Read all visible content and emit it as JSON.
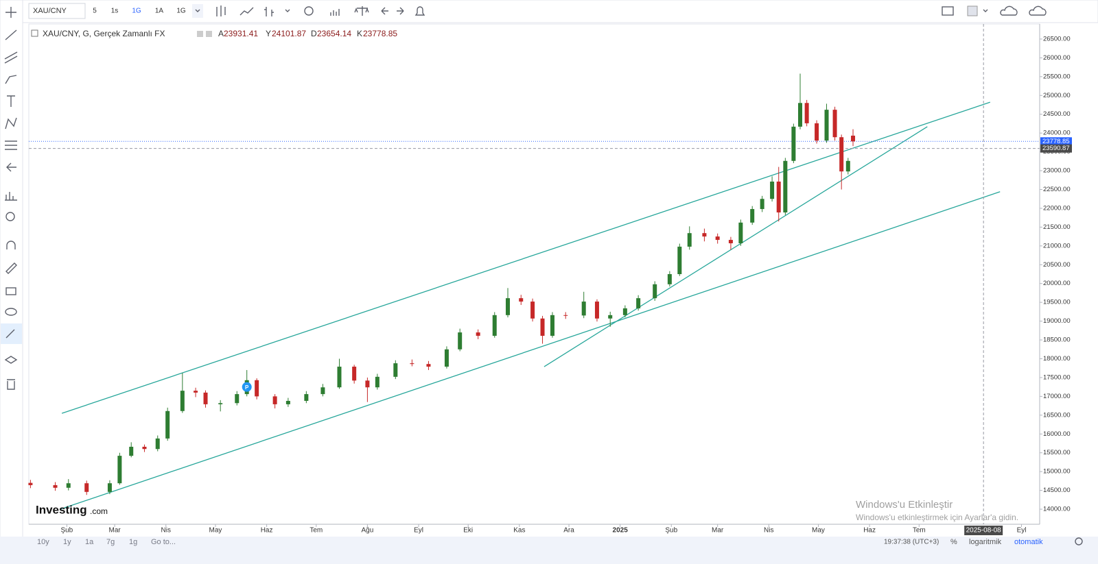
{
  "toolbar": {
    "symbol": "XAU/CNY",
    "intervals": [
      "5",
      "1s",
      "1G",
      "1A",
      "1G"
    ]
  },
  "chart_data": {
    "type": "candlestick",
    "title": "XAU/CNY, G, Gerçek Zamanlı FX",
    "ohlc_letters": [
      "A",
      "Y",
      "D",
      "K"
    ],
    "x": [
      9,
      24,
      32,
      43,
      57,
      63,
      70,
      78,
      86,
      92,
      101,
      109,
      115,
      124,
      134,
      140,
      146,
      157,
      165,
      176,
      186,
      196,
      205,
      213,
      219,
      230,
      240,
      250,
      261,
      269,
      280,
      290,
      298,
      306,
      313,
      319,
      325,
      333,
      344,
      352,
      360,
      369,
      377,
      387,
      396,
      402,
      408,
      417,
      425,
      433,
      439,
      446,
      452,
      458,
      462,
      466,
      471,
      475,
      479,
      485,
      491,
      496,
      500,
      504,
      507
    ],
    "open": [
      14700,
      14640,
      14570,
      14690,
      14460,
      14690,
      15420,
      15660,
      15600,
      15880,
      16610,
      17150,
      17100,
      16790,
      16820,
      17060,
      17430,
      17000,
      16790,
      16880,
      17060,
      17240,
      17790,
      17420,
      17240,
      17520,
      17880,
      17860,
      17790,
      18250,
      18700,
      18610,
      19160,
      19610,
      19520,
      19070,
      18610,
      19160,
      19150,
      19520,
      19070,
      19160,
      19340,
      19610,
      19980,
      20250,
      20980,
      21340,
      21250,
      21160,
      21070,
      21620,
      21980,
      22250,
      22710,
      21890,
      23260,
      24170,
      24800,
      24260,
      23800,
      24620,
      23890,
      22980,
      23931.41
    ],
    "high": [
      14780,
      14720,
      14800,
      14760,
      14770,
      15500,
      15780,
      15720,
      15960,
      16700,
      17620,
      17230,
      17160,
      16900,
      17140,
      17700,
      17480,
      17060,
      16960,
      17140,
      17330,
      18000,
      17840,
      17500,
      17600,
      17960,
      17980,
      17940,
      18330,
      18800,
      18780,
      19240,
      19880,
      19700,
      19600,
      19140,
      19240,
      19240,
      19780,
      19580,
      19250,
      19420,
      19690,
      20060,
      20330,
      21060,
      21520,
      21460,
      21330,
      21240,
      21700,
      22060,
      22330,
      22850,
      23100,
      23340,
      24250,
      25580,
      24880,
      24340,
      24780,
      24700,
      23960,
      23340,
      24101.87
    ],
    "low": [
      14560,
      14490,
      14500,
      14380,
      14400,
      14650,
      15380,
      15520,
      15540,
      15820,
      16560,
      16980,
      16700,
      16600,
      16760,
      17000,
      16920,
      16680,
      16720,
      16820,
      17000,
      17200,
      17340,
      16850,
      17180,
      17460,
      17800,
      17700,
      17740,
      18200,
      18520,
      18560,
      19100,
      19430,
      18990,
      18400,
      18560,
      19060,
      19080,
      18990,
      18850,
      19100,
      19280,
      19540,
      19920,
      20200,
      20900,
      21120,
      21060,
      20900,
      21000,
      21560,
      21900,
      22180,
      21650,
      21820,
      23200,
      24100,
      24180,
      23720,
      23740,
      23800,
      22500,
      22900,
      23654.14
    ],
    "close": [
      14640,
      14570,
      14690,
      14460,
      14690,
      15420,
      15660,
      15600,
      15880,
      16610,
      17150,
      17100,
      16790,
      16820,
      17060,
      17430,
      17000,
      16790,
      16880,
      17060,
      17240,
      17790,
      17420,
      17240,
      17520,
      17880,
      17860,
      17790,
      18250,
      18700,
      18610,
      19160,
      19610,
      19520,
      19070,
      18610,
      19160,
      19150,
      19520,
      19070,
      19160,
      19340,
      19610,
      19980,
      20250,
      20980,
      21340,
      21250,
      21160,
      21070,
      21620,
      21980,
      22250,
      22710,
      21890,
      23260,
      24170,
      24800,
      24260,
      23800,
      24620,
      23890,
      22980,
      23260,
      23778.85
    ],
    "up_color": "#2e7d32",
    "down_color": "#c62828",
    "trendline_color": "#26a69a",
    "trendlines": [
      [
        [
          28,
          16550
        ],
        [
          590,
          24820
        ]
      ],
      [
        [
          27,
          14000
        ],
        [
          596,
          22440
        ]
      ],
      [
        [
          320,
          17790
        ],
        [
          552,
          24170
        ]
      ]
    ],
    "last_price": 23778.85,
    "crosshair": {
      "x": 586,
      "x_label": "2025-08-08",
      "y": 23590.87
    },
    "marker": {
      "x": 140,
      "y": 17250,
      "label": "P"
    },
    "xlim": [
      8,
      620
    ],
    "ylim": [
      13600,
      26900
    ],
    "xticks": [
      {
        "value": 31,
        "label": "Şub"
      },
      {
        "value": 60,
        "label": "Mar"
      },
      {
        "value": 91,
        "label": "Nis"
      },
      {
        "value": 121,
        "label": "May"
      },
      {
        "value": 152,
        "label": "Haz"
      },
      {
        "value": 182,
        "label": "Tem"
      },
      {
        "value": 213,
        "label": "Ağu"
      },
      {
        "value": 244,
        "label": "Eyl"
      },
      {
        "value": 274,
        "label": "Eki"
      },
      {
        "value": 305,
        "label": "Kas"
      },
      {
        "value": 335,
        "label": "Ara"
      },
      {
        "value": 366,
        "label": "2025"
      },
      {
        "value": 397,
        "label": "Şub"
      },
      {
        "value": 425,
        "label": "Mar"
      },
      {
        "value": 456,
        "label": "Nis"
      },
      {
        "value": 486,
        "label": "May"
      },
      {
        "value": 517,
        "label": "Haz"
      },
      {
        "value": 547,
        "label": "Tem"
      },
      {
        "value": 609,
        "label": "Eyl"
      }
    ],
    "yticks": [
      {
        "value": 14000,
        "label": "14000.00"
      },
      {
        "value": 14500,
        "label": "14500.00"
      },
      {
        "value": 15000,
        "label": "15000.00"
      },
      {
        "value": 15500,
        "label": "15500.00"
      },
      {
        "value": 16000,
        "label": "16000.00"
      },
      {
        "value": 16500,
        "label": "16500.00"
      },
      {
        "value": 17000,
        "label": "17000.00"
      },
      {
        "value": 17500,
        "label": "17500.00"
      },
      {
        "value": 18000,
        "label": "18000.00"
      },
      {
        "value": 18500,
        "label": "18500.00"
      },
      {
        "value": 19000,
        "label": "19000.00"
      },
      {
        "value": 19500,
        "label": "19500.00"
      },
      {
        "value": 20000,
        "label": "20000.00"
      },
      {
        "value": 20500,
        "label": "20500.00"
      },
      {
        "value": 21000,
        "label": "21000.00"
      },
      {
        "value": 21500,
        "label": "21500.00"
      },
      {
        "value": 22000,
        "label": "22000.00"
      },
      {
        "value": 22500,
        "label": "22500.00"
      },
      {
        "value": 23000,
        "label": "23000.00"
      },
      {
        "value": 23500,
        "label": "23500.00"
      },
      {
        "value": 24000,
        "label": "24000.00"
      },
      {
        "value": 24500,
        "label": "24500.00"
      },
      {
        "value": 25000,
        "label": "25000.00"
      },
      {
        "value": 25500,
        "label": "25500.00"
      },
      {
        "value": 26000,
        "label": "26000.00"
      },
      {
        "value": 26500,
        "label": "26500.00"
      }
    ]
  },
  "watermark": {
    "brand": "Investing",
    "suffix": ".com"
  },
  "activation": {
    "title": "Windows'u Etkinleştir",
    "text": "Windows'u etkinleştirmek için Ayarlar'a gidin."
  },
  "bottom_bar": {
    "ranges": [
      "10y",
      "1y",
      "1a",
      "7g",
      "1g"
    ],
    "goto": "Go to...",
    "time": "19:37:38 (UTC+3)",
    "options": [
      "%",
      "logaritmik",
      "otomatik"
    ]
  }
}
